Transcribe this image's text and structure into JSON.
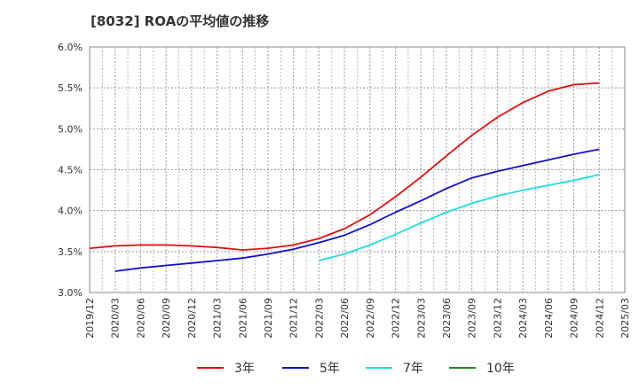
{
  "chart_data": {
    "type": "line",
    "title": "[8032]  ROAの平均値の推移",
    "xlabel": "",
    "ylabel": "",
    "ylim": [
      3.0,
      6.0
    ],
    "yticks": [
      "3.0%",
      "3.5%",
      "4.0%",
      "4.5%",
      "5.0%",
      "5.5%",
      "6.0%"
    ],
    "xticks": [
      "2019/12",
      "2020/03",
      "2020/06",
      "2020/09",
      "2020/12",
      "2021/03",
      "2021/06",
      "2021/09",
      "2021/12",
      "2022/03",
      "2022/06",
      "2022/09",
      "2022/12",
      "2023/03",
      "2023/06",
      "2023/09",
      "2023/12",
      "2024/03",
      "2024/06",
      "2024/09",
      "2024/12",
      "2025/03"
    ],
    "grid": true,
    "legend_position": "bottom",
    "series": [
      {
        "name": "3年",
        "color": "#dd1111",
        "x": [
          "2019/12",
          "2020/03",
          "2020/06",
          "2020/09",
          "2020/12",
          "2021/03",
          "2021/06",
          "2021/09",
          "2021/12",
          "2022/03",
          "2022/06",
          "2022/09",
          "2022/12",
          "2023/03",
          "2023/06",
          "2023/09",
          "2023/12",
          "2024/03",
          "2024/06",
          "2024/09",
          "2024/12"
        ],
        "values": [
          3.54,
          3.57,
          3.58,
          3.58,
          3.57,
          3.55,
          3.52,
          3.54,
          3.58,
          3.66,
          3.78,
          3.95,
          4.17,
          4.41,
          4.67,
          4.92,
          5.14,
          5.32,
          5.46,
          5.54,
          5.56
        ]
      },
      {
        "name": "5年",
        "color": "#1111cc",
        "x": [
          "2020/03",
          "2020/06",
          "2020/09",
          "2020/12",
          "2021/03",
          "2021/06",
          "2021/09",
          "2021/12",
          "2022/03",
          "2022/06",
          "2022/09",
          "2022/12",
          "2023/03",
          "2023/06",
          "2023/09",
          "2023/12",
          "2024/03",
          "2024/06",
          "2024/09",
          "2024/12"
        ],
        "values": [
          3.26,
          3.3,
          3.33,
          3.36,
          3.39,
          3.42,
          3.47,
          3.53,
          3.61,
          3.7,
          3.83,
          3.98,
          4.12,
          4.27,
          4.4,
          4.48,
          4.55,
          4.62,
          4.69,
          4.75
        ]
      },
      {
        "name": "7年",
        "color": "#22dddd",
        "x": [
          "2022/03",
          "2022/06",
          "2022/09",
          "2022/12",
          "2023/03",
          "2023/06",
          "2023/09",
          "2023/12",
          "2024/03",
          "2024/06",
          "2024/09",
          "2024/12"
        ],
        "values": [
          3.39,
          3.47,
          3.58,
          3.71,
          3.85,
          3.98,
          4.09,
          4.18,
          4.25,
          4.31,
          4.37,
          4.44
        ]
      },
      {
        "name": "10年",
        "color": "#228822",
        "x": [],
        "values": []
      }
    ]
  }
}
